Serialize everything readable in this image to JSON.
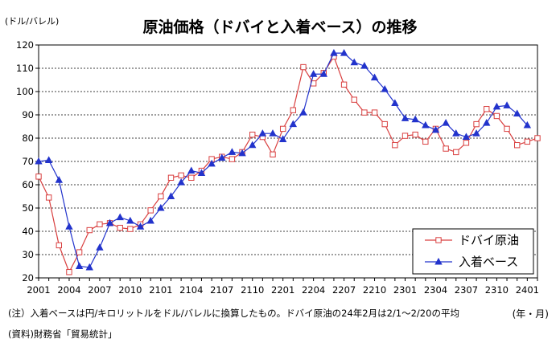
{
  "chart_data": {
    "type": "line",
    "title": "原油価格（ドバイと入着ベース）の推移",
    "ylabel": "(ドル/バレル)",
    "xlabel": "(年・月)",
    "ylim": [
      20,
      120
    ],
    "yticks": [
      20,
      30,
      40,
      50,
      60,
      70,
      80,
      90,
      100,
      110,
      120
    ],
    "x": [
      "2001",
      "2002",
      "2003",
      "2004",
      "2005",
      "2006",
      "2007",
      "2008",
      "2009",
      "2010",
      "2011",
      "2012",
      "2101",
      "2102",
      "2103",
      "2104",
      "2105",
      "2106",
      "2107",
      "2108",
      "2109",
      "2110",
      "2111",
      "2112",
      "2201",
      "2202",
      "2203",
      "2204",
      "2205",
      "2206",
      "2207",
      "2208",
      "2209",
      "2210",
      "2211",
      "2212",
      "2301",
      "2302",
      "2303",
      "2304",
      "2305",
      "2306",
      "2307",
      "2308",
      "2309",
      "2310",
      "2311",
      "2312",
      "2401",
      "2402"
    ],
    "xtick_labels": [
      "2001",
      "2004",
      "2007",
      "2010",
      "2101",
      "2104",
      "2107",
      "2110",
      "2201",
      "2204",
      "2207",
      "2210",
      "2301",
      "2304",
      "2307",
      "2310",
      "2401"
    ],
    "grid": true,
    "legend_position": "bottom-right",
    "series": [
      {
        "name": "ドバイ原油",
        "color": "#d94040",
        "marker": "open-square",
        "values": [
          63.5,
          54.5,
          34,
          22.5,
          31,
          40.5,
          43,
          43.5,
          41.5,
          41,
          43,
          49,
          55,
          63,
          64,
          63,
          66,
          71,
          72,
          71,
          74,
          81.5,
          80.5,
          73,
          84,
          92,
          110.5,
          103.5,
          108,
          115,
          103,
          96.5,
          91,
          91,
          86,
          77,
          81,
          81.5,
          78.5,
          84,
          75.5,
          74,
          78,
          86,
          92.5,
          89.5,
          84,
          77,
          78.5,
          80
        ]
      },
      {
        "name": "入着ベース",
        "color": "#2233cc",
        "marker": "filled-triangle",
        "values": [
          70,
          70.5,
          62,
          42,
          25,
          24.5,
          33,
          43.5,
          46,
          44.5,
          42,
          44.5,
          50,
          55,
          61,
          66,
          65,
          69,
          71.5,
          74,
          73.5,
          77,
          82,
          82,
          79.5,
          86,
          91,
          107.5,
          107.5,
          116.5,
          116.5,
          112.5,
          111,
          106,
          101,
          95,
          88.5,
          88,
          85.5,
          83.5,
          86.5,
          82,
          80.5,
          82,
          86.5,
          93.5,
          94,
          90.5,
          85.5,
          null
        ]
      }
    ]
  },
  "notes": {
    "line1": "(注）入着ベースは円/キロリットルをドル/バレルに換算したもの。ドバイ原油の24年2月は2/1～2/20の平均",
    "period": "(年・月)",
    "line2": "(資料)財務省「貿易統計」"
  }
}
